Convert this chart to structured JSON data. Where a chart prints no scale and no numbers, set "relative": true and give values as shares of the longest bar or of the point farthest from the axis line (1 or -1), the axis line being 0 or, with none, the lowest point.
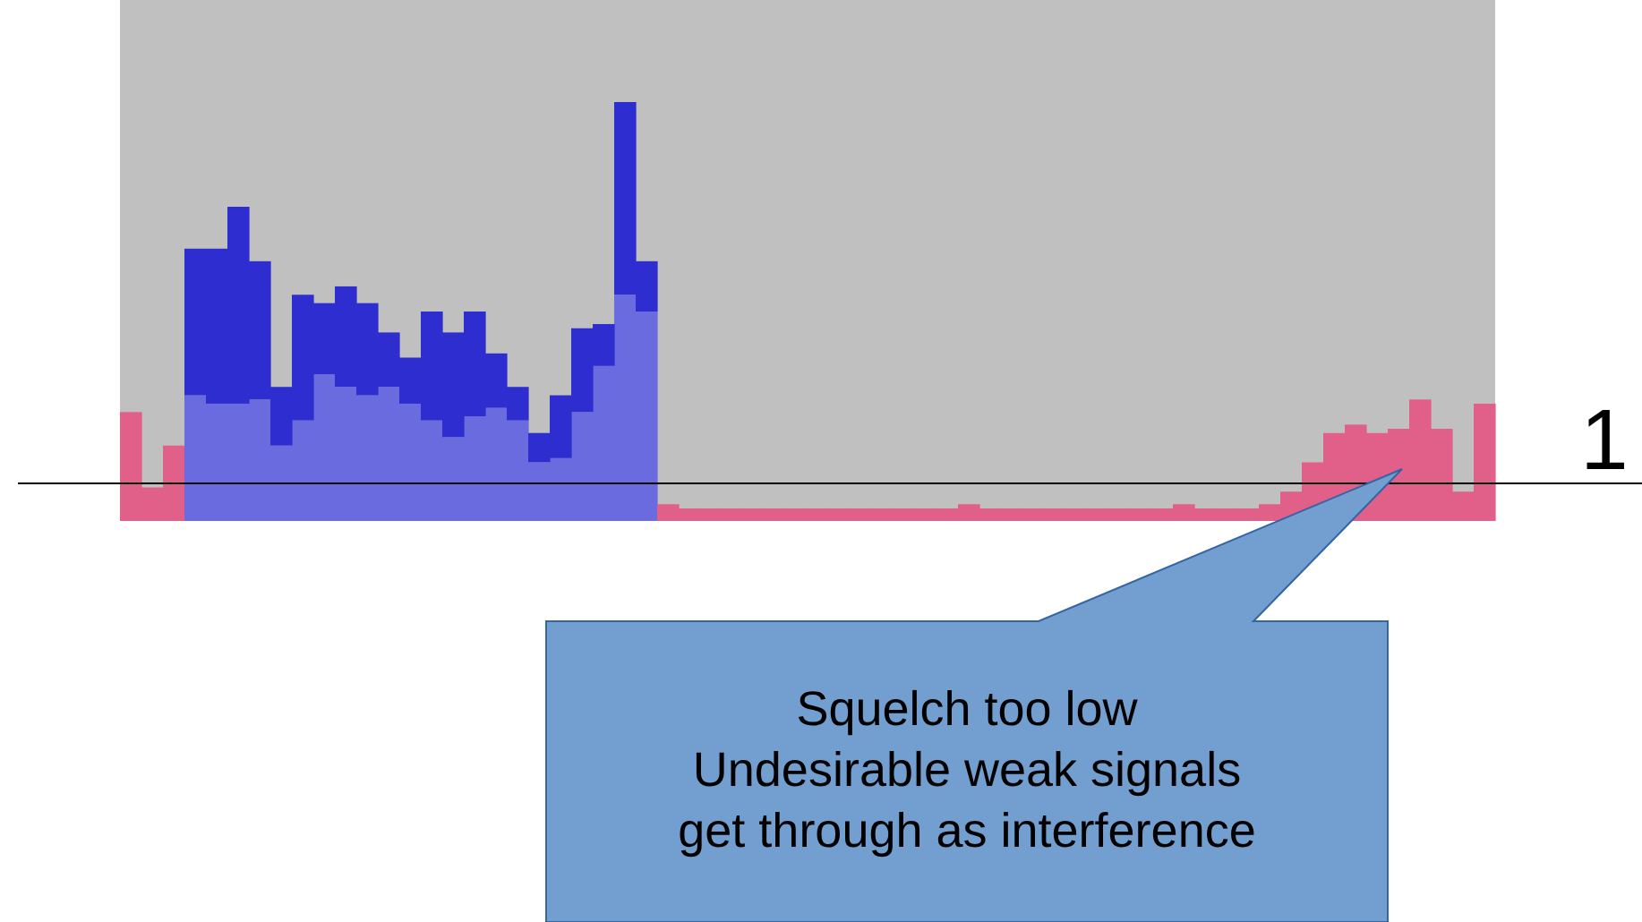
{
  "chart_data": {
    "type": "bar",
    "stacked": true,
    "relative": true,
    "categories": [
      null,
      null,
      null,
      null,
      null,
      null,
      null,
      null,
      null,
      null,
      null,
      null,
      null,
      null,
      null,
      null,
      null,
      null,
      null,
      null,
      null,
      null,
      null,
      null,
      null,
      null,
      null,
      null,
      null,
      null,
      null,
      null,
      null,
      null,
      null,
      null,
      null,
      null,
      null,
      null,
      null,
      null,
      null,
      null,
      null,
      null,
      null,
      null,
      null,
      null,
      null,
      null,
      null,
      null,
      null,
      null,
      null,
      null,
      null,
      null,
      null,
      null,
      null,
      null
    ],
    "series": [
      {
        "colors": [
          "#e0608a",
          "#e0608a",
          "#e0608a",
          "#6b6be0",
          "#6b6be0",
          "#6b6be0",
          "#6b6be0",
          "#6b6be0",
          "#6b6be0",
          "#6b6be0",
          "#6b6be0",
          "#6b6be0",
          "#6b6be0",
          "#6b6be0",
          "#6b6be0",
          "#6b6be0",
          "#6b6be0",
          "#6b6be0",
          "#6b6be0",
          "#6b6be0",
          "#6b6be0",
          "#6b6be0",
          "#6b6be0",
          "#6b6be0",
          "#6b6be0",
          "#e0608a",
          "#e0608a",
          "#e0608a",
          "#e0608a",
          "#e0608a",
          "#e0608a",
          "#e0608a",
          "#e0608a",
          "#e0608a",
          "#e0608a",
          "#e0608a",
          "#e0608a",
          "#e0608a",
          "#e0608a",
          "#e0608a",
          "#e0608a",
          "#e0608a",
          "#e0608a",
          "#e0608a",
          "#e0608a",
          "#e0608a",
          "#e0608a",
          "#e0608a",
          "#e0608a",
          "#e0608a",
          "#e0608a",
          "#e0608a",
          "#e0608a",
          "#e0608a",
          "#e0608a",
          "#e0608a",
          "#e0608a",
          "#e0608a",
          "#e0608a",
          "#e0608a",
          "#e0608a",
          "#e0608a",
          "#e0608a",
          "#e0608a"
        ],
        "values": [
          0.26,
          0.08,
          0.18,
          0.3,
          0.28,
          0.28,
          0.29,
          0.18,
          0.24,
          0.35,
          0.32,
          0.3,
          0.32,
          0.28,
          0.24,
          0.2,
          0.25,
          0.27,
          0.24,
          0.14,
          0.15,
          0.26,
          0.37,
          0.54,
          0.5,
          0.04,
          0.03,
          0.03,
          0.03,
          0.03,
          0.03,
          0.03,
          0.03,
          0.03,
          0.03,
          0.03,
          0.03,
          0.03,
          0.03,
          0.04,
          0.03,
          0.03,
          0.03,
          0.03,
          0.03,
          0.03,
          0.03,
          0.03,
          0.03,
          0.04,
          0.03,
          0.03,
          0.03,
          0.04,
          0.07,
          0.14,
          0.21,
          0.23,
          0.21,
          0.22,
          0.29,
          0.22,
          0.07,
          0.28
        ]
      },
      {
        "color": "#2e2ed0",
        "values": [
          0,
          0,
          0,
          0.35,
          0.37,
          0.47,
          0.33,
          0.14,
          0.3,
          0.17,
          0.24,
          0.22,
          0.13,
          0.11,
          0.26,
          0.25,
          0.25,
          0.13,
          0.08,
          0.07,
          0.15,
          0.2,
          0.1,
          0.46,
          0.12,
          0,
          0,
          0,
          0,
          0,
          0,
          0,
          0,
          0,
          0,
          0,
          0,
          0,
          0,
          0,
          0,
          0,
          0,
          0,
          0,
          0,
          0,
          0,
          0,
          0,
          0,
          0,
          0,
          0,
          0,
          0,
          0,
          0,
          0,
          0,
          0,
          0,
          0,
          0
        ]
      }
    ],
    "ref_lines": [
      {
        "axis": "y",
        "value": 0.09,
        "color": "#000000"
      }
    ],
    "annotations": [
      "1",
      "Squelch too low\nUndesirable weak signals\nget through as interference"
    ]
  }
}
